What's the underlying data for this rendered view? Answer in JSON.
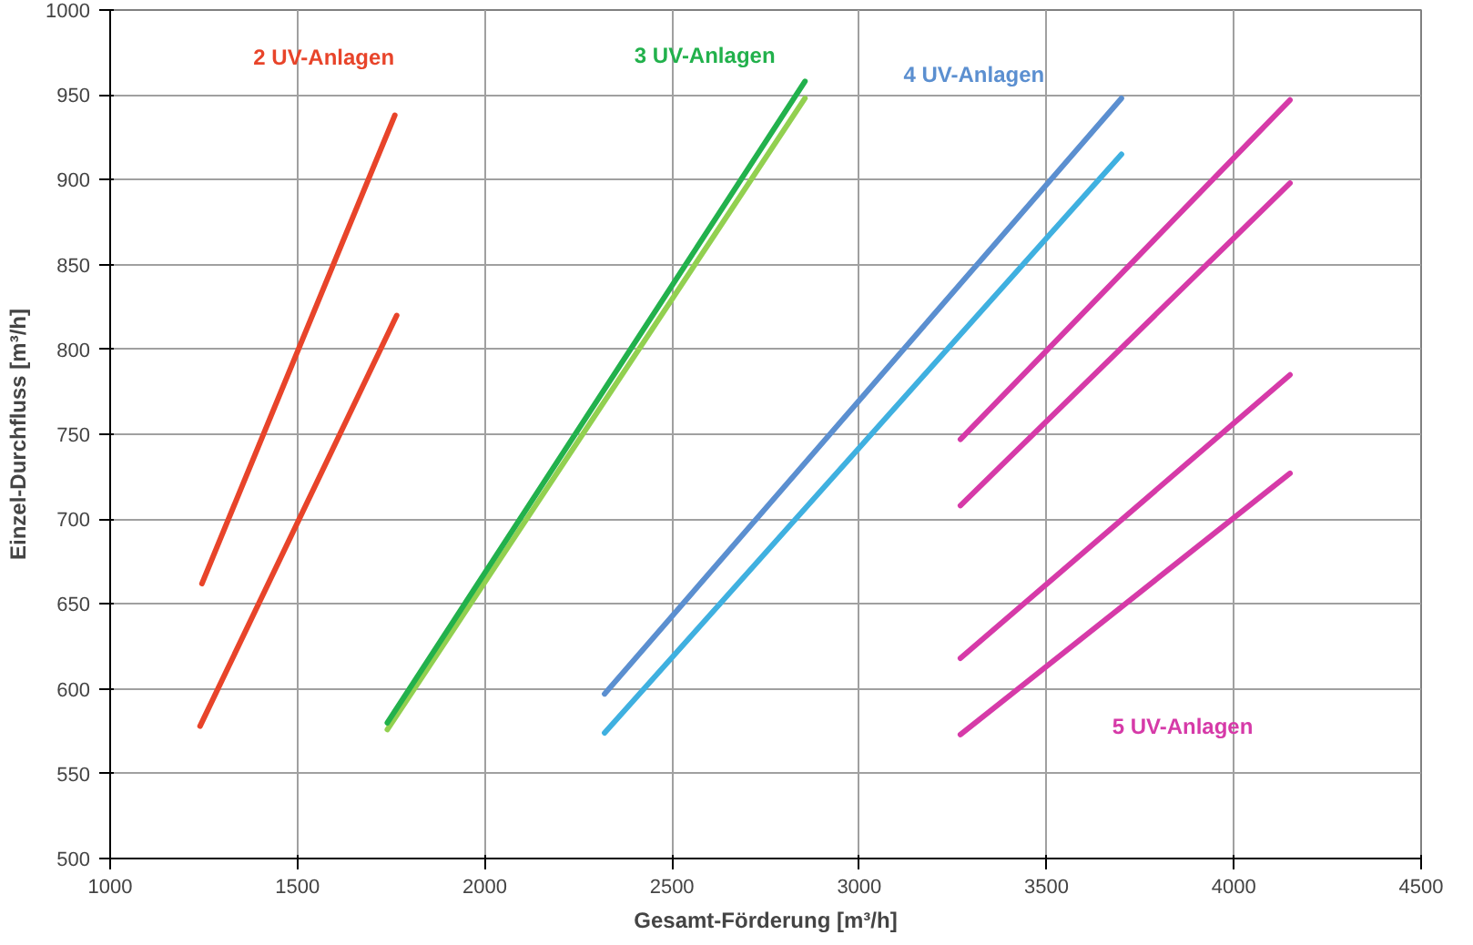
{
  "chart_data": {
    "type": "line",
    "xlabel": "Gesamt-Förderung [m³/h]",
    "ylabel": "Einzel-Durchfluss [m³/h]",
    "xlim": [
      1000,
      4500
    ],
    "ylim": [
      500,
      1000
    ],
    "xticks": [
      1000,
      1500,
      2000,
      2500,
      3000,
      3500,
      4000,
      4500
    ],
    "yticks": [
      500,
      550,
      600,
      650,
      700,
      750,
      800,
      850,
      900,
      950,
      1000
    ],
    "grid": true,
    "marker": "none",
    "line_style": "solid",
    "series": [
      {
        "name": "2 UV-Anlagen",
        "color": "#e8442a",
        "x": [
          1245,
          1760
        ],
        "values": [
          662,
          938
        ]
      },
      {
        "color": "#e8442a",
        "x": [
          1240,
          1765
        ],
        "values": [
          578,
          820
        ]
      },
      {
        "color": "#92d050",
        "x": [
          1740,
          2855
        ],
        "values": [
          576,
          948
        ]
      },
      {
        "name": "3 UV-Anlagen",
        "color": "#22b14c",
        "x": [
          1740,
          2855
        ],
        "values": [
          580,
          958
        ]
      },
      {
        "name": "4 UV-Anlagen",
        "color": "#5b8fd0",
        "x": [
          2320,
          3700
        ],
        "values": [
          597,
          948
        ]
      },
      {
        "color": "#3fb0e0",
        "x": [
          2320,
          3700
        ],
        "values": [
          574,
          915
        ]
      },
      {
        "color": "#d63aa8",
        "x": [
          3270,
          4150
        ],
        "values": [
          747,
          947
        ]
      },
      {
        "color": "#d63aa8",
        "x": [
          3270,
          4150
        ],
        "values": [
          708,
          898
        ]
      },
      {
        "color": "#d63aa8",
        "x": [
          3270,
          4150
        ],
        "values": [
          618,
          785
        ]
      },
      {
        "name": "5 UV-Anlagen",
        "color": "#d63aa8",
        "x": [
          3270,
          4150
        ],
        "values": [
          573,
          727
        ]
      }
    ]
  }
}
